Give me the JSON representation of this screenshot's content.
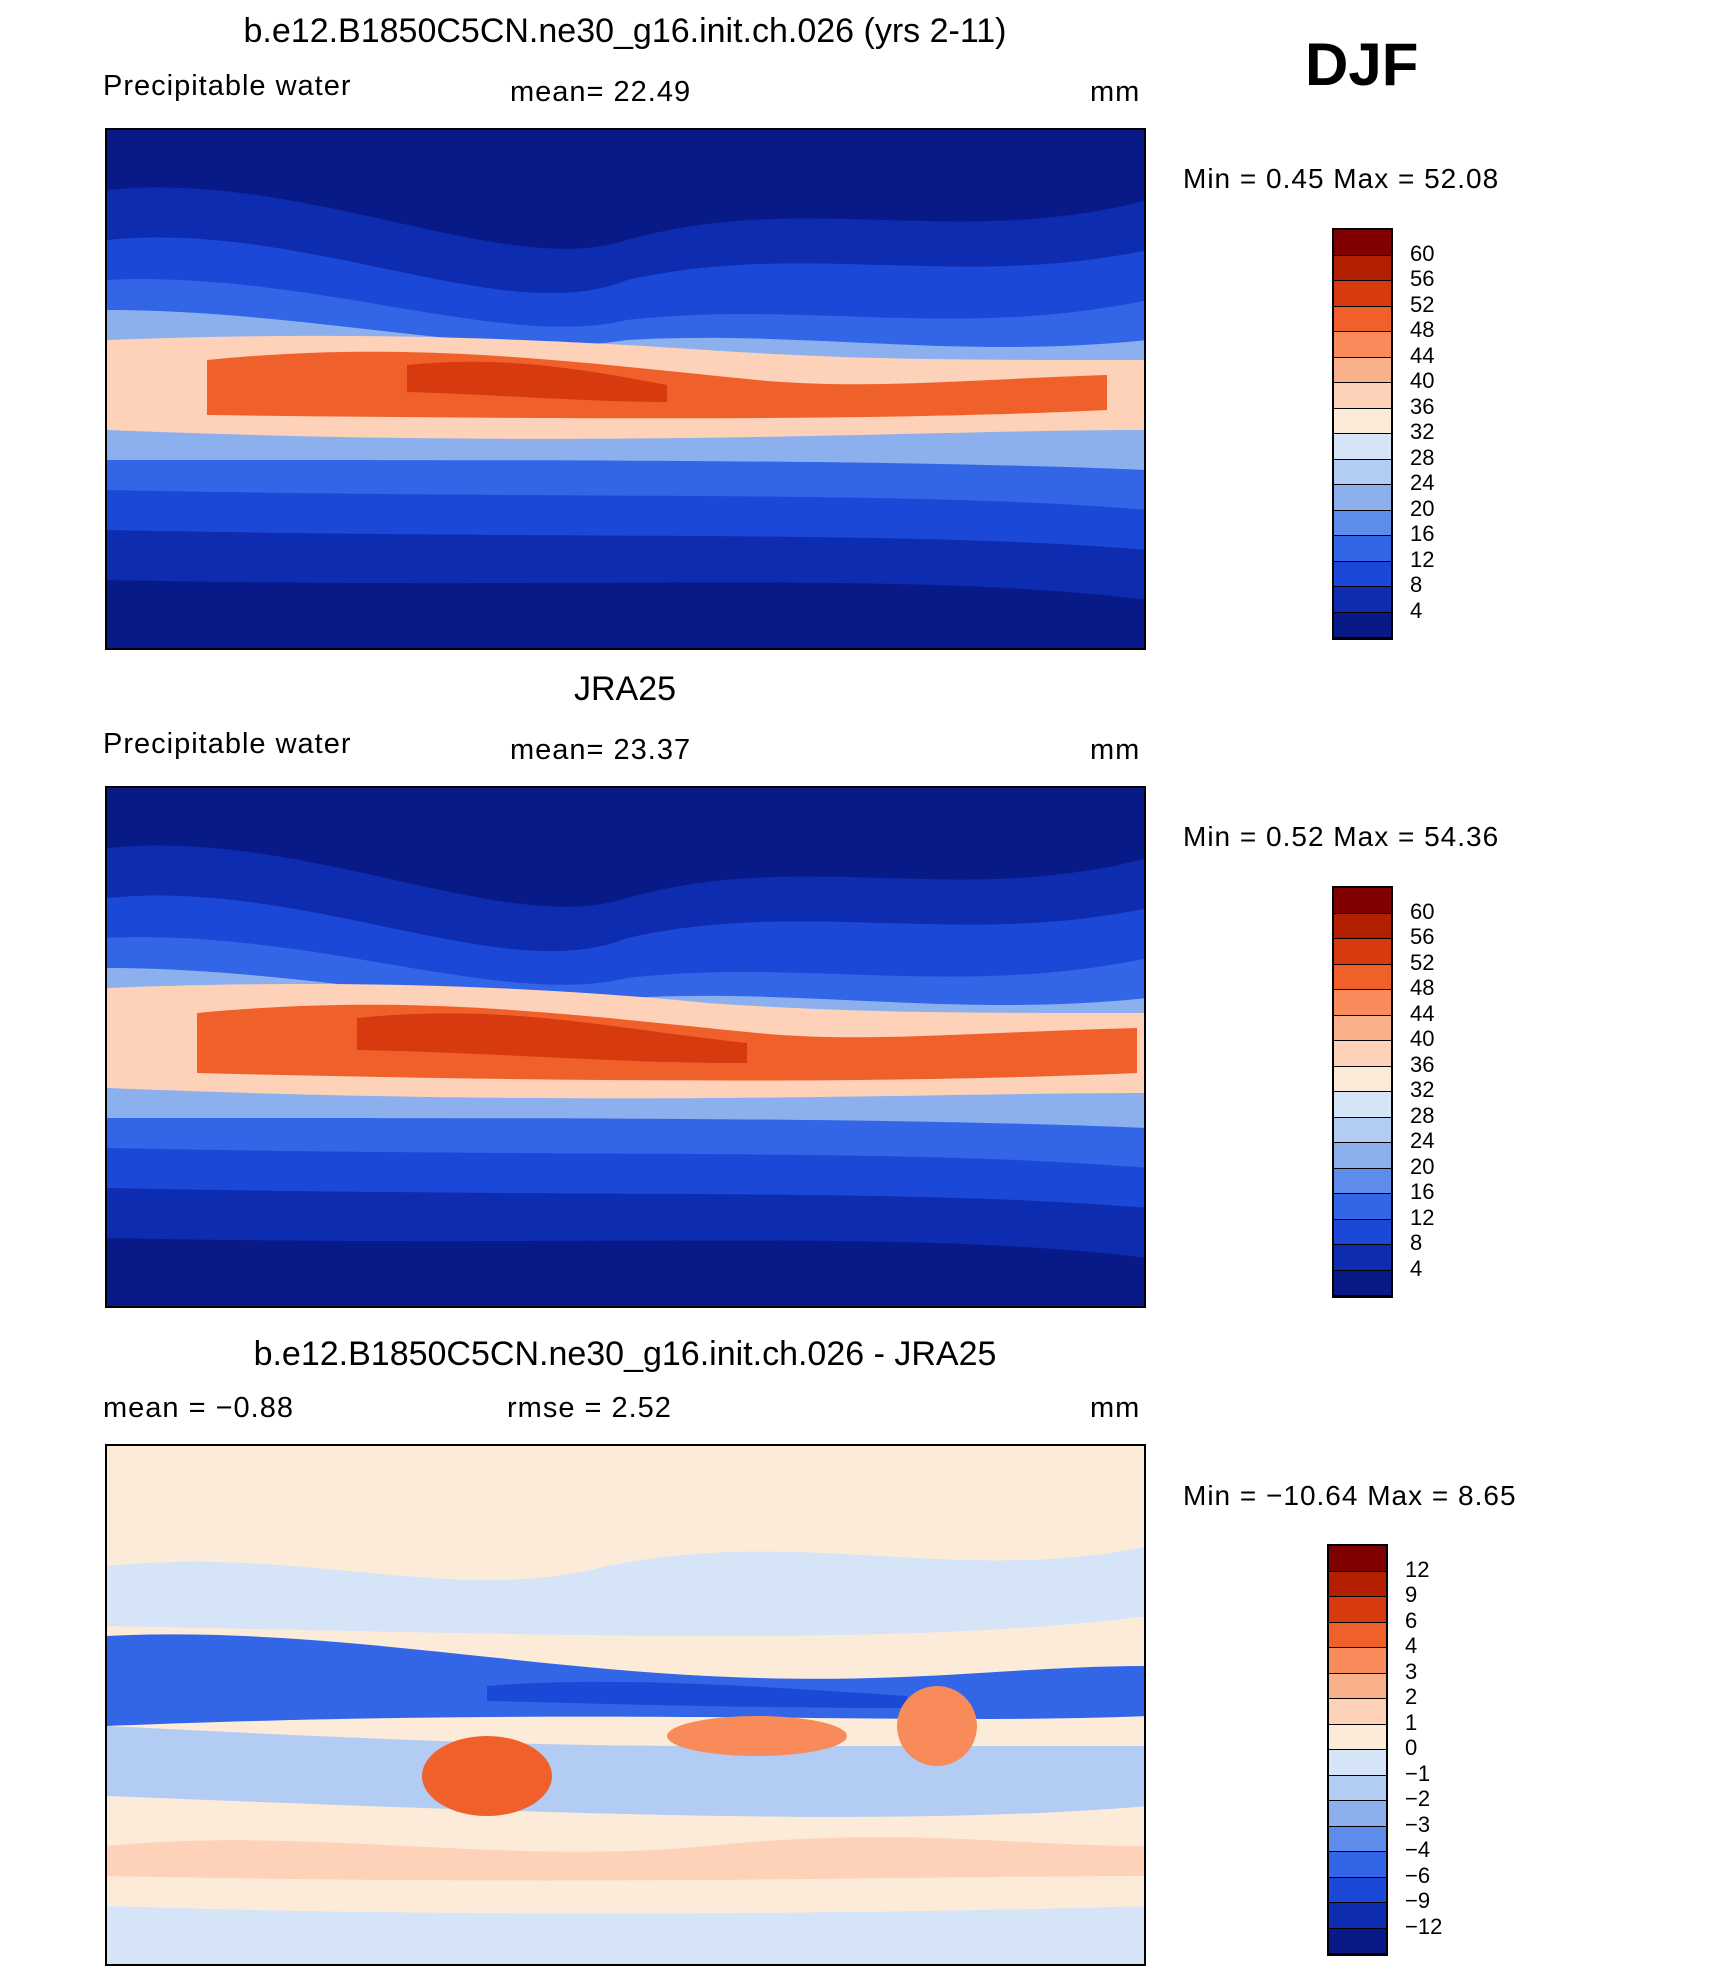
{
  "season": "DJF",
  "panels": [
    {
      "title": "b.e12.B1850C5CN.ne30_g16.init.ch.026 (yrs 2-11)",
      "left_label": "Precipitable  water",
      "center_label": "mean=   22.49",
      "right_label": "mm",
      "min_max": "Min  =     0.45  Max  =    52.08",
      "colorbar_levels": [
        "60",
        "56",
        "52",
        "48",
        "44",
        "40",
        "36",
        "32",
        "28",
        "24",
        "20",
        "16",
        "12",
        "8",
        "4"
      ],
      "colors": [
        "#7f0000",
        "#b22000",
        "#d83a10",
        "#f0602a",
        "#f98a5a",
        "#fbb08c",
        "#fdd2b8",
        "#fdebd9",
        "#d6e4f8",
        "#b3ccf3",
        "#8cb0ee",
        "#5e8cea",
        "#3366e6",
        "#1c48d8",
        "#0e2cb0",
        "#081a88"
      ]
    },
    {
      "title": "JRA25",
      "left_label": "Precipitable  water",
      "center_label": "mean=   23.37",
      "right_label": "mm",
      "min_max": "Min  =     0.52  Max  =    54.36",
      "colorbar_levels": [
        "60",
        "56",
        "52",
        "48",
        "44",
        "40",
        "36",
        "32",
        "28",
        "24",
        "20",
        "16",
        "12",
        "8",
        "4"
      ],
      "colors": [
        "#7f0000",
        "#b22000",
        "#d83a10",
        "#f0602a",
        "#f98a5a",
        "#fbb08c",
        "#fdd2b8",
        "#fdebd9",
        "#d6e4f8",
        "#b3ccf3",
        "#8cb0ee",
        "#5e8cea",
        "#3366e6",
        "#1c48d8",
        "#0e2cb0",
        "#081a88"
      ]
    },
    {
      "title": "b.e12.B1850C5CN.ne30_g16.init.ch.026 - JRA25",
      "left_label": "mean  =    −0.88",
      "center_label": "rmse  =     2.52",
      "right_label": "mm",
      "min_max": "Min  =  −10.64  Max  =      8.65",
      "colorbar_levels": [
        "12",
        "9",
        "6",
        "4",
        "3",
        "2",
        "1",
        "0",
        "−1",
        "−2",
        "−3",
        "−4",
        "−6",
        "−9",
        "−12"
      ],
      "colors": [
        "#7f0000",
        "#b22000",
        "#d83a10",
        "#f0602a",
        "#f98a5a",
        "#fbb08c",
        "#fdd2b8",
        "#fdebd9",
        "#d6e4f8",
        "#b3ccf3",
        "#8cb0ee",
        "#5e8cea",
        "#3366e6",
        "#1c48d8",
        "#0e2cb0",
        "#081a88"
      ]
    }
  ],
  "chart_data": [
    {
      "type": "heatmap",
      "title": "b.e12.B1850C5CN.ne30_g16.init.ch.026 (yrs 2-11)",
      "variable": "Precipitable water",
      "units": "mm",
      "mean": 22.49,
      "min": 0.45,
      "max": 52.08,
      "levels": [
        4,
        8,
        12,
        16,
        20,
        24,
        28,
        32,
        36,
        40,
        44,
        48,
        52,
        56,
        60
      ]
    },
    {
      "type": "heatmap",
      "title": "JRA25",
      "variable": "Precipitable water",
      "units": "mm",
      "mean": 23.37,
      "min": 0.52,
      "max": 54.36,
      "levels": [
        4,
        8,
        12,
        16,
        20,
        24,
        28,
        32,
        36,
        40,
        44,
        48,
        52,
        56,
        60
      ]
    },
    {
      "type": "heatmap",
      "title": "b.e12.B1850C5CN.ne30_g16.init.ch.026 - JRA25",
      "units": "mm",
      "mean": -0.88,
      "rmse": 2.52,
      "min": -10.64,
      "max": 8.65,
      "levels": [
        -12,
        -9,
        -6,
        -4,
        -3,
        -2,
        -1,
        0,
        1,
        2,
        3,
        4,
        6,
        9,
        12
      ]
    }
  ]
}
